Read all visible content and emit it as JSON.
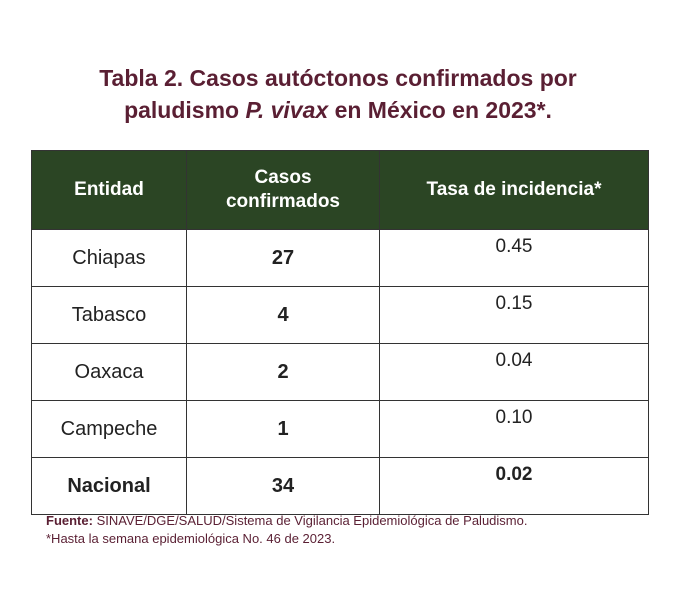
{
  "title": {
    "line1": "Tabla 2. Casos autóctonos confirmados por",
    "line2_prefix": "paludismo ",
    "line2_italic": "P. vivax",
    "line2_suffix": " en México en 2023*."
  },
  "table": {
    "headers": {
      "entidad": "Entidad",
      "casos_line1": "Casos",
      "casos_line2": "confirmados",
      "tasa": "Tasa de incidencia*"
    },
    "rows": [
      {
        "entidad": "Chiapas",
        "casos": "27",
        "tasa": "0.45"
      },
      {
        "entidad": "Tabasco",
        "casos": "4",
        "tasa": "0.15"
      },
      {
        "entidad": "Oaxaca",
        "casos": "2",
        "tasa": "0.04"
      },
      {
        "entidad": "Campeche",
        "casos": "1",
        "tasa": "0.10"
      }
    ],
    "total": {
      "entidad": "Nacional",
      "casos": "34",
      "tasa": "0.02"
    }
  },
  "footer": {
    "source_label": "Fuente:",
    "source_text": " SINAVE/DGE/SALUD/Sistema de Vigilancia Epidemiológica de Paludismo.",
    "note": "*Hasta la semana epidemiológica No. 46 de 2023."
  },
  "colors": {
    "title": "#5a1f33",
    "header_bg": "#2b4524",
    "border": "#333333"
  }
}
